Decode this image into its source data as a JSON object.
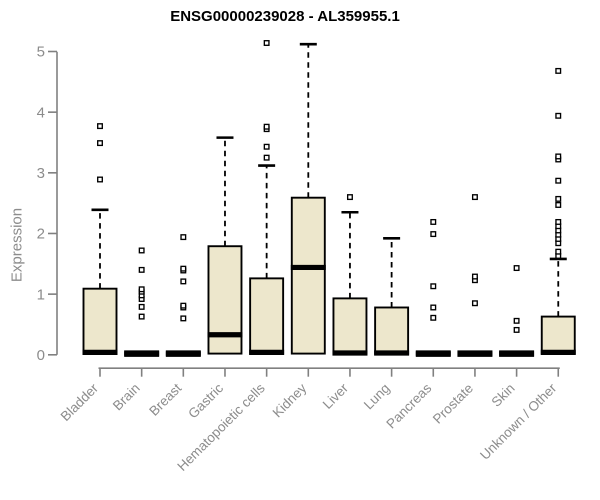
{
  "chart_data": {
    "type": "boxplot",
    "title": "ENSG00000239028 - AL359955.1",
    "ylabel": "Expression",
    "xlabel": "",
    "ylim": [
      0,
      5
    ],
    "yticks": [
      0,
      1,
      2,
      3,
      4,
      5
    ],
    "grid": false,
    "legend": false,
    "categories": [
      "Bladder",
      "Brain",
      "Breast",
      "Gastric",
      "Hematopoietic cells",
      "Kidney",
      "Liver",
      "Lung",
      "Pancreas",
      "Prostate",
      "Skin",
      "Unknown / Other"
    ],
    "series": [
      {
        "category": "Bladder",
        "q1": 0.02,
        "median": 0.04,
        "q3": 1.09,
        "whisker_low": 0.02,
        "whisker_high": 2.39,
        "outliers": [
          2.89,
          3.49,
          3.77
        ]
      },
      {
        "category": "Brain",
        "q1": 0.0,
        "median": 0.02,
        "q3": 0.04,
        "whisker_low": 0.0,
        "whisker_high": 0.04,
        "outliers": [
          0.63,
          0.79,
          0.92,
          0.98,
          1.04,
          1.08,
          1.4,
          1.72
        ]
      },
      {
        "category": "Breast",
        "q1": 0.0,
        "median": 0.02,
        "q3": 0.04,
        "whisker_low": 0.0,
        "whisker_high": 0.04,
        "outliers": [
          0.6,
          0.78,
          0.81,
          1.21,
          1.39,
          1.42,
          1.94
        ]
      },
      {
        "category": "Gastric",
        "q1": 0.02,
        "median": 0.33,
        "q3": 1.79,
        "whisker_low": 0.02,
        "whisker_high": 3.58,
        "outliers": []
      },
      {
        "category": "Hematopoietic cells",
        "q1": 0.02,
        "median": 0.04,
        "q3": 1.26,
        "whisker_low": 0.02,
        "whisker_high": 3.12,
        "outliers": [
          3.25,
          3.43,
          3.72,
          3.76,
          5.14
        ]
      },
      {
        "category": "Kidney",
        "q1": 0.02,
        "median": 1.44,
        "q3": 2.59,
        "whisker_low": 0.02,
        "whisker_high": 5.12,
        "outliers": []
      },
      {
        "category": "Liver",
        "q1": 0.02,
        "median": 0.03,
        "q3": 0.93,
        "whisker_low": 0.02,
        "whisker_high": 2.35,
        "outliers": [
          2.6
        ]
      },
      {
        "category": "Lung",
        "q1": 0.02,
        "median": 0.03,
        "q3": 0.78,
        "whisker_low": 0.02,
        "whisker_high": 1.92,
        "outliers": []
      },
      {
        "category": "Pancreas",
        "q1": 0.0,
        "median": 0.02,
        "q3": 0.04,
        "whisker_low": 0.0,
        "whisker_high": 0.04,
        "outliers": [
          0.61,
          0.78,
          1.13,
          1.99,
          2.19
        ]
      },
      {
        "category": "Prostate",
        "q1": 0.0,
        "median": 0.02,
        "q3": 0.04,
        "whisker_low": 0.0,
        "whisker_high": 0.04,
        "outliers": [
          0.85,
          1.23,
          1.29,
          2.6
        ]
      },
      {
        "category": "Skin",
        "q1": 0.0,
        "median": 0.02,
        "q3": 0.04,
        "whisker_low": 0.0,
        "whisker_high": 0.04,
        "outliers": [
          0.41,
          0.56,
          1.43
        ]
      },
      {
        "category": "Unknown / Other",
        "q1": 0.02,
        "median": 0.04,
        "q3": 0.63,
        "whisker_low": 0.02,
        "whisker_high": 1.58,
        "outliers": [
          1.63,
          1.7,
          1.84,
          1.91,
          1.98,
          2.05,
          2.12,
          2.19,
          2.47,
          2.57,
          2.87,
          3.22,
          3.27,
          3.94,
          4.68
        ]
      }
    ],
    "colors": {
      "box_fill": "#EDE7CC",
      "box_stroke": "#000000",
      "median": "#000000",
      "whisker": "#000000",
      "outlier_stroke": "#000000",
      "outlier_fill": "#FFFFFF",
      "axis": "#808080",
      "tick_label": "#8C8C8C",
      "title": "#000000",
      "background": "#FFFFFF"
    }
  }
}
